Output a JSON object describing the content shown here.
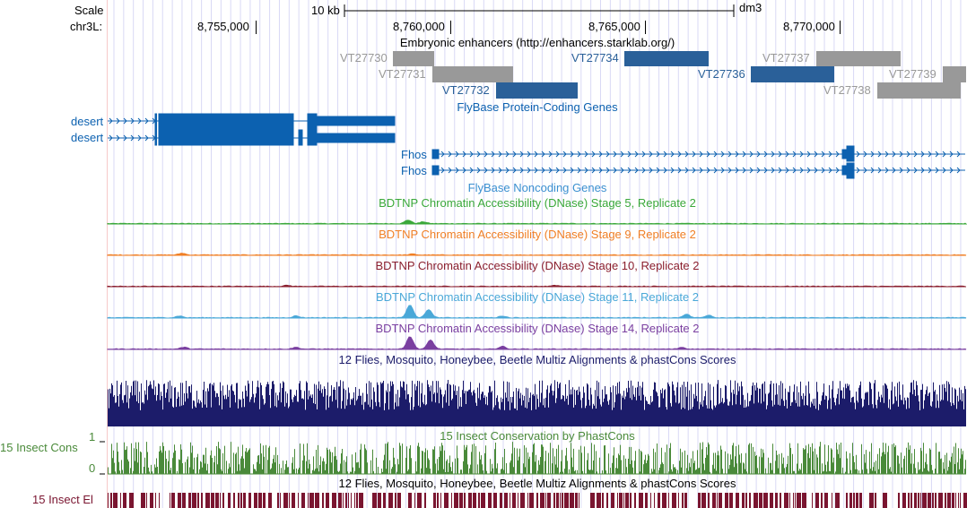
{
  "header": {
    "scale_label": "Scale",
    "scale_text": "10 kb",
    "assembly": "dm3",
    "chrom_label": "chr3L:",
    "positions": [
      "8,755,000",
      "8,760,000",
      "8,765,000",
      "8,770,000"
    ]
  },
  "tracks": {
    "enhancers": {
      "title": "Embryonic enhancers (http://enhancers.starklab.org/)",
      "items": [
        {
          "name": "VT27730",
          "color": "#999999"
        },
        {
          "name": "VT27731",
          "color": "#999999"
        },
        {
          "name": "VT27732",
          "color": "#2a6099"
        },
        {
          "name": "VT27734",
          "color": "#2a6099"
        },
        {
          "name": "VT27736",
          "color": "#2a6099"
        },
        {
          "name": "VT27737",
          "color": "#999999"
        },
        {
          "name": "VT27738",
          "color": "#999999"
        },
        {
          "name": "VT27739",
          "color": "#999999"
        }
      ]
    },
    "protein_genes": {
      "title": "FlyBase Protein-Coding Genes",
      "color": "#0c61b0",
      "genes": [
        "desert",
        "desert",
        "Fhos",
        "Fhos"
      ]
    },
    "noncoding": {
      "title": "FlyBase Noncoding Genes",
      "color": "#3a8fd0"
    },
    "dnase": [
      {
        "title": "BDTNP Chromatin Accessibility (DNase) Stage 5, Replicate 2",
        "color": "#3aa83a"
      },
      {
        "title": "BDTNP Chromatin Accessibility (DNase) Stage 9, Replicate 2",
        "color": "#f07f25"
      },
      {
        "title": "BDTNP Chromatin Accessibility (DNase) Stage 10, Replicate 2",
        "color": "#8a1e2e"
      },
      {
        "title": "BDTNP Chromatin Accessibility (DNase) Stage 11, Replicate 2",
        "color": "#4aa8d8"
      },
      {
        "title": "BDTNP Chromatin Accessibility (DNase) Stage 14, Replicate 2",
        "color": "#7a3fa0"
      }
    ],
    "multiz": {
      "title": "12 Flies, Mosquito, Honeybee, Beetle Multiz Alignments & phastCons Scores",
      "color": "#1c1c6a"
    },
    "cons": {
      "title": "15 Insect Conservation by PhastCons",
      "left_label": "15 Insect Cons",
      "axis_max": "1",
      "axis_min": "0",
      "color": "#4a8a3a"
    },
    "elements": {
      "title": "12 Flies, Mosquito, Honeybee, Beetle Multiz Alignments & phastCons Scores",
      "left_label": "15 Insect El",
      "color": "#7a1530"
    }
  }
}
